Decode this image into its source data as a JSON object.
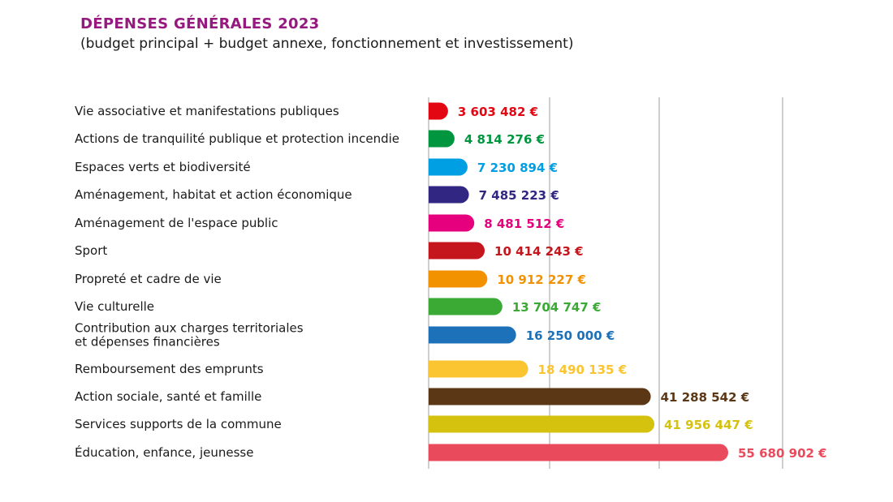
{
  "chart_data": {
    "type": "bar",
    "orientation": "horizontal",
    "title": "DÉPENSES GÉNÉRALES 2023",
    "subtitle": "(budget principal + budget annexe, fonctionnement et investissement)",
    "grid": true,
    "categories": [
      [
        "Vie associative et manifestations publiques"
      ],
      [
        "Actions de tranquilité publique et protection incendie"
      ],
      [
        "Espaces verts et biodiversité"
      ],
      [
        "Aménagement, habitat et action économique"
      ],
      [
        "Aménagement de l'espace public"
      ],
      [
        "Sport"
      ],
      [
        "Propreté et cadre de vie"
      ],
      [
        "Vie culturelle"
      ],
      [
        "Contribution aux charges territoriales",
        "et dépenses financières"
      ],
      [
        "Remboursement des emprunts"
      ],
      [
        "Action sociale, santé et famille"
      ],
      [
        "Services supports de la commune"
      ],
      [
        "Éducation, enfance, jeunesse"
      ]
    ],
    "values": [
      3603482,
      4814276,
      7230894,
      7485223,
      8481512,
      10414243,
      10912227,
      13704747,
      16250000,
      18490135,
      41288542,
      41956447,
      55680902
    ],
    "value_labels": [
      "3 603 482 €",
      "4 814 276 €",
      "7 230 894 €",
      "7 485 223 €",
      "8 481 512 €",
      "10 414 243 €",
      "10 912 227 €",
      "13 704 747 €",
      "16 250 000 €",
      "18 490 135 €",
      "41 288 542 €",
      "41 956 447 €",
      "55 680 902 €"
    ],
    "colors": [
      "#e30613",
      "#009640",
      "#009fe3",
      "#312783",
      "#e6007e",
      "#c4161c",
      "#f39200",
      "#3aaa35",
      "#1d71b8",
      "#fbc531",
      "#5b3715",
      "#d4c20f",
      "#e94b5d"
    ]
  },
  "colors": {
    "title": "#95197e"
  }
}
